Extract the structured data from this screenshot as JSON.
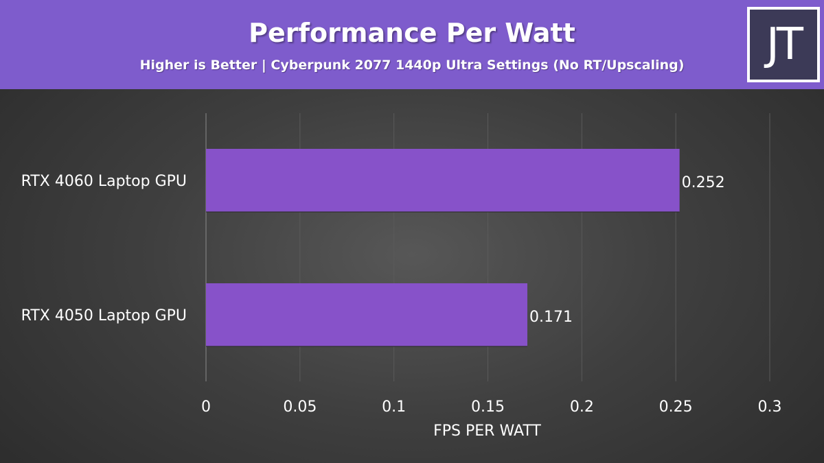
{
  "header": {
    "title": "Performance Per Watt",
    "subtitle": "Higher is Better | Cyberpunk 2077 1440p Ultra Settings (No RT/Upscaling)",
    "logo_text": "JT"
  },
  "colors": {
    "header_bg": "#7e5ccc",
    "bar": "#8752c9",
    "text": "#ffffff",
    "gridline": "#5a5a5a"
  },
  "chart_data": {
    "type": "bar",
    "orientation": "horizontal",
    "categories": [
      "RTX 4060 Laptop GPU",
      "RTX 4050 Laptop GPU"
    ],
    "values": [
      0.252,
      0.171
    ],
    "value_labels": [
      "0.252",
      "0.171"
    ],
    "xlabel": "FPS PER WATT",
    "ylabel": "",
    "xlim": [
      0,
      0.3
    ],
    "ticks": [
      0,
      0.05,
      0.1,
      0.15,
      0.2,
      0.25,
      0.3
    ],
    "tick_labels": [
      "0",
      "0.05",
      "0.1",
      "0.15",
      "0.2",
      "0.25",
      "0.3"
    ],
    "grid": true,
    "legend": "none"
  }
}
